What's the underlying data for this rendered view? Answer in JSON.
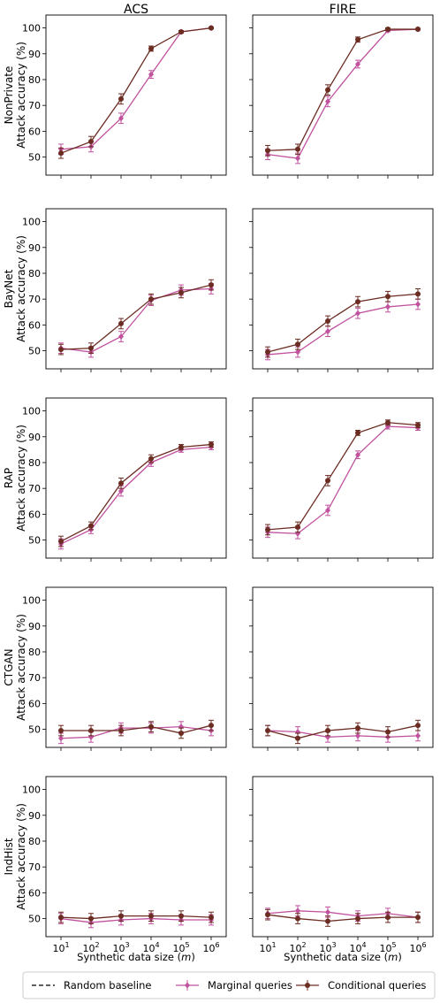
{
  "colors": {
    "marginal": "#c0529e",
    "conditional": "#6b2c22",
    "baseline": "#000000"
  },
  "legend": [
    {
      "key": "baseline",
      "label": "Random baseline",
      "style": "dashed"
    },
    {
      "key": "marginal",
      "label": "Marginal queries",
      "style": "marker"
    },
    {
      "key": "conditional",
      "label": "Conditional queries",
      "style": "marker"
    }
  ],
  "chart_data": {
    "type": "line",
    "columns": [
      "ACS",
      "FIRE"
    ],
    "xlabel": "Synthetic data size (m)",
    "x_ticks": [
      "1",
      "2",
      "3",
      "4",
      "5",
      "6"
    ],
    "x_exponents": [
      1,
      2,
      3,
      4,
      5,
      6
    ],
    "ylim": [
      43,
      105
    ],
    "y_ticks": [
      50,
      60,
      70,
      80,
      90,
      100
    ],
    "ylabel_common": "Attack accuracy (%)",
    "grid": false,
    "legend_position": "bottom",
    "rows": [
      {
        "name": "NonPrivate",
        "panels": [
          {
            "col": "ACS",
            "marginal": {
              "y": [
                53,
                54,
                65,
                82,
                98.5,
                100
              ],
              "err": [
                2,
                2,
                2,
                1.5,
                0.5,
                0.3
              ]
            },
            "conditional": {
              "y": [
                51.5,
                56,
                72.5,
                92,
                98.5,
                100
              ],
              "err": [
                2,
                2,
                2,
                1,
                0.5,
                0.3
              ]
            }
          },
          {
            "col": "FIRE",
            "marginal": {
              "y": [
                51,
                49.5,
                71.5,
                86,
                99,
                99.5
              ],
              "err": [
                2,
                2,
                2,
                1.5,
                0.5,
                0.3
              ]
            },
            "conditional": {
              "y": [
                52.5,
                53,
                76,
                95.5,
                99.5,
                99.5
              ],
              "err": [
                2,
                2,
                2,
                1,
                0.5,
                0.3
              ]
            }
          }
        ]
      },
      {
        "name": "BayNet",
        "panels": [
          {
            "col": "ACS",
            "marginal": {
              "y": [
                51,
                49.5,
                55.5,
                69.5,
                73.5,
                74
              ],
              "err": [
                2,
                2,
                2,
                2,
                2,
                2
              ]
            },
            "conditional": {
              "y": [
                50.5,
                51,
                60.5,
                70,
                72.5,
                75.5
              ],
              "err": [
                2,
                2,
                2,
                2,
                2,
                2
              ]
            }
          },
          {
            "col": "FIRE",
            "marginal": {
              "y": [
                48.5,
                49.5,
                57.5,
                64.5,
                67,
                68
              ],
              "err": [
                2,
                2,
                2,
                2,
                2,
                2
              ]
            },
            "conditional": {
              "y": [
                49.5,
                52.5,
                61.5,
                69,
                71,
                72
              ],
              "err": [
                2,
                2,
                2,
                2,
                2,
                2
              ]
            }
          }
        ]
      },
      {
        "name": "RAP",
        "panels": [
          {
            "col": "ACS",
            "marginal": {
              "y": [
                48.5,
                54,
                69,
                80,
                85,
                86
              ],
              "err": [
                2,
                1.5,
                2,
                1.5,
                1,
                1
              ]
            },
            "conditional": {
              "y": [
                49.5,
                55.5,
                72,
                81.5,
                86,
                87
              ],
              "err": [
                2,
                1.5,
                2,
                1.5,
                1,
                1
              ]
            }
          },
          {
            "col": "FIRE",
            "marginal": {
              "y": [
                53,
                52.5,
                61.5,
                83,
                94,
                93.5
              ],
              "err": [
                2,
                2,
                2,
                1.5,
                1,
                1
              ]
            },
            "conditional": {
              "y": [
                54,
                55,
                73,
                91.5,
                95.5,
                94.5
              ],
              "err": [
                2,
                2,
                2,
                1,
                1,
                1
              ]
            }
          }
        ]
      },
      {
        "name": "CTGAN",
        "panels": [
          {
            "col": "ACS",
            "marginal": {
              "y": [
                46.5,
                47,
                50.5,
                50.5,
                51,
                49.5
              ],
              "err": [
                2,
                2,
                2,
                2,
                2,
                2
              ]
            },
            "conditional": {
              "y": [
                49.5,
                49.5,
                49.5,
                51,
                48.5,
                51.5
              ],
              "err": [
                2,
                2,
                2,
                2,
                2,
                2
              ]
            }
          },
          {
            "col": "FIRE",
            "marginal": {
              "y": [
                49.5,
                49,
                47,
                47.5,
                47,
                47.5
              ],
              "err": [
                2,
                2,
                2,
                2,
                2,
                2
              ]
            },
            "conditional": {
              "y": [
                49.5,
                46.5,
                49.5,
                50.5,
                49,
                51.5
              ],
              "err": [
                2,
                2,
                2,
                2,
                2,
                2
              ]
            }
          }
        ]
      },
      {
        "name": "IndHist",
        "panels": [
          {
            "col": "ACS",
            "marginal": {
              "y": [
                50,
                48.5,
                49.5,
                50,
                49.5,
                49.5
              ],
              "err": [
                2,
                2,
                2,
                2,
                2,
                2
              ]
            },
            "conditional": {
              "y": [
                50.5,
                50,
                51,
                51,
                51,
                50.5
              ],
              "err": [
                2,
                2,
                2,
                2,
                2,
                2
              ]
            }
          },
          {
            "col": "FIRE",
            "marginal": {
              "y": [
                52,
                53,
                52.5,
                51,
                52,
                50.5
              ],
              "err": [
                2,
                2,
                2,
                2,
                2,
                2
              ]
            },
            "conditional": {
              "y": [
                51.5,
                50,
                49,
                50,
                50.5,
                50.5
              ],
              "err": [
                2,
                2,
                2,
                2,
                2,
                2
              ]
            }
          }
        ]
      }
    ]
  }
}
